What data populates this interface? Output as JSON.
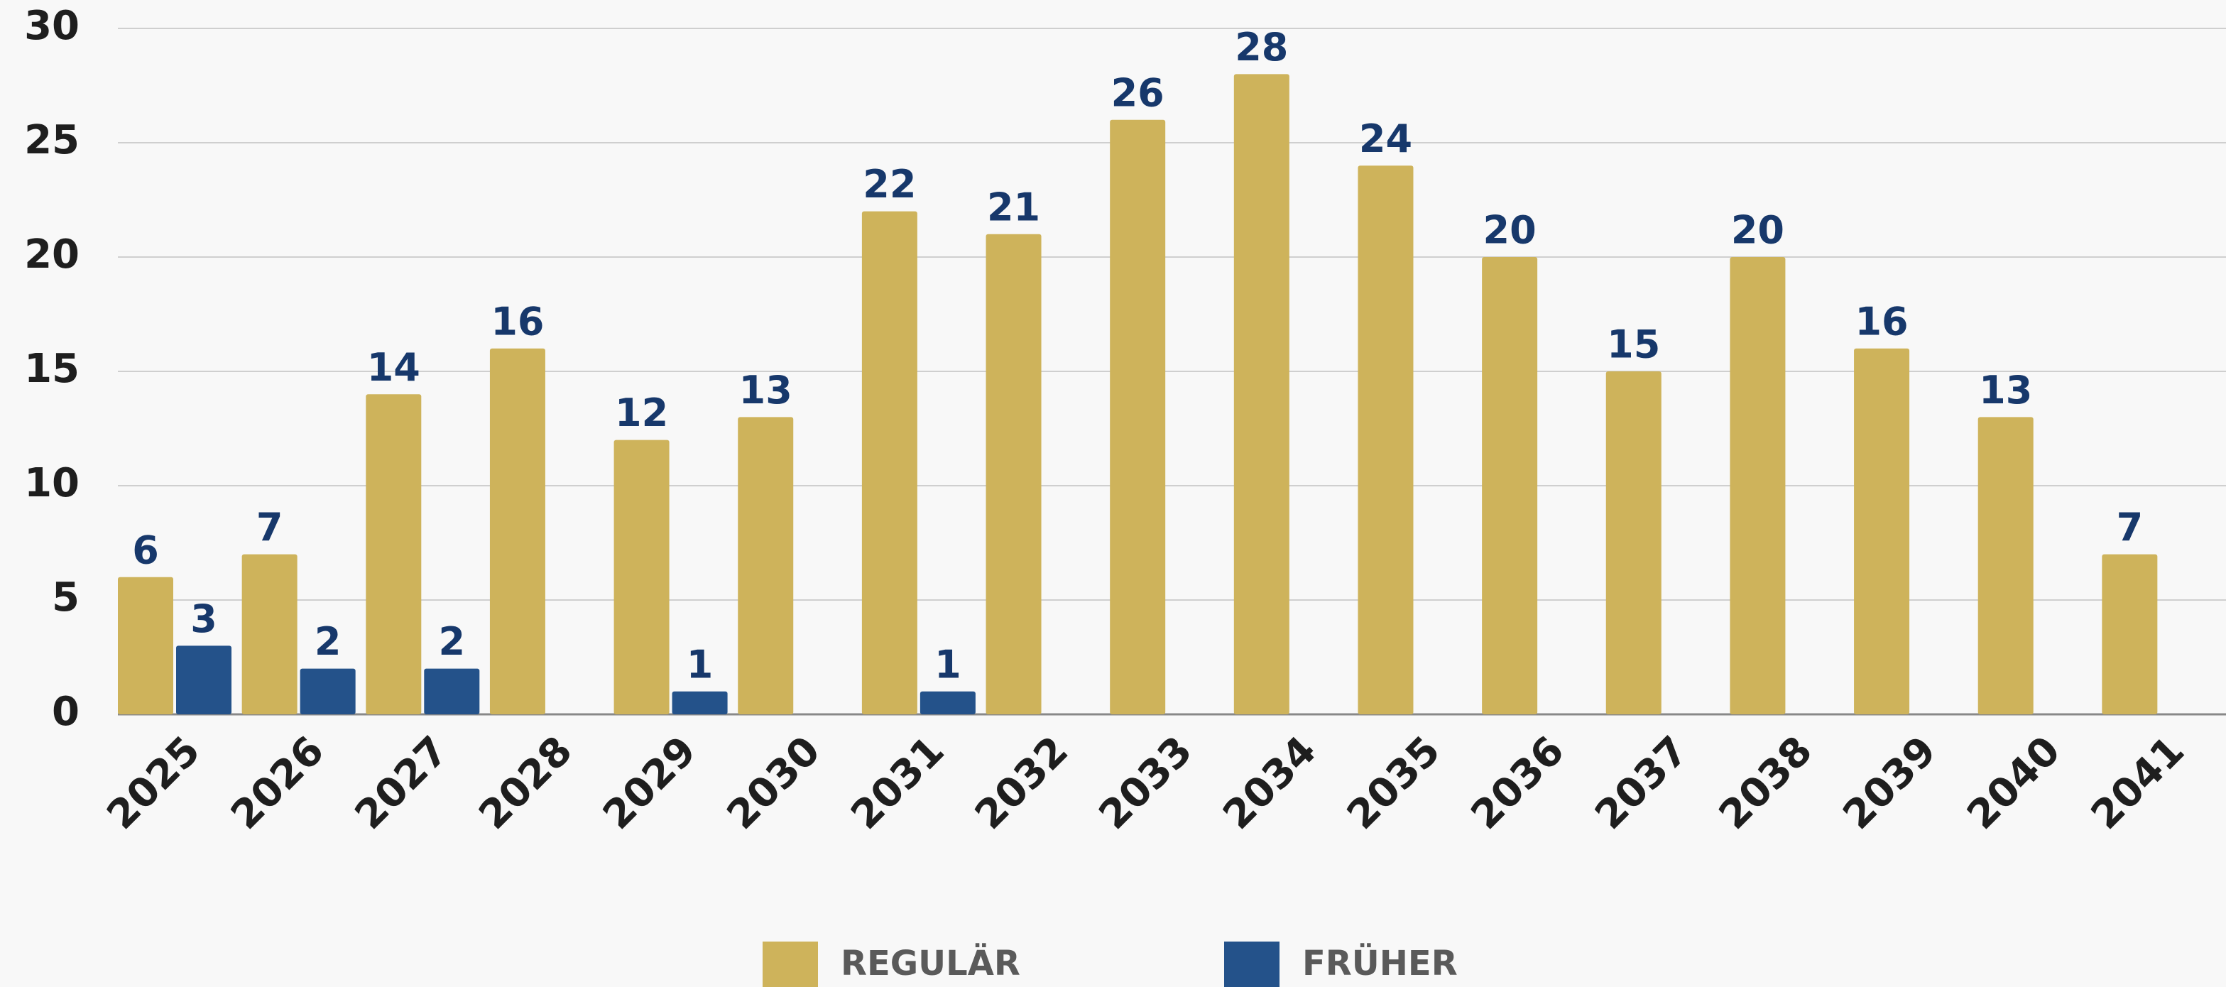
{
  "chart_data": {
    "type": "bar",
    "categories": [
      "2025",
      "2026",
      "2027",
      "2028",
      "2029",
      "2030",
      "2031",
      "2032",
      "2033",
      "2034",
      "2035",
      "2036",
      "2037",
      "2038",
      "2039",
      "2040",
      "2041"
    ],
    "series": [
      {
        "name": "REGULÄR",
        "color": "#ceb35b",
        "values": [
          6,
          7,
          14,
          16,
          12,
          13,
          22,
          21,
          26,
          28,
          24,
          20,
          15,
          20,
          16,
          13,
          7
        ]
      },
      {
        "name": "FRÜHER",
        "color": "#24528a",
        "values": [
          3,
          2,
          2,
          null,
          1,
          null,
          1,
          null,
          null,
          null,
          null,
          null,
          null,
          null,
          null,
          null,
          null
        ]
      }
    ],
    "ylim": [
      0,
      30
    ],
    "yticks": [
      0,
      5,
      10,
      15,
      20,
      25,
      30
    ],
    "grid": true,
    "legend": "bottom"
  }
}
